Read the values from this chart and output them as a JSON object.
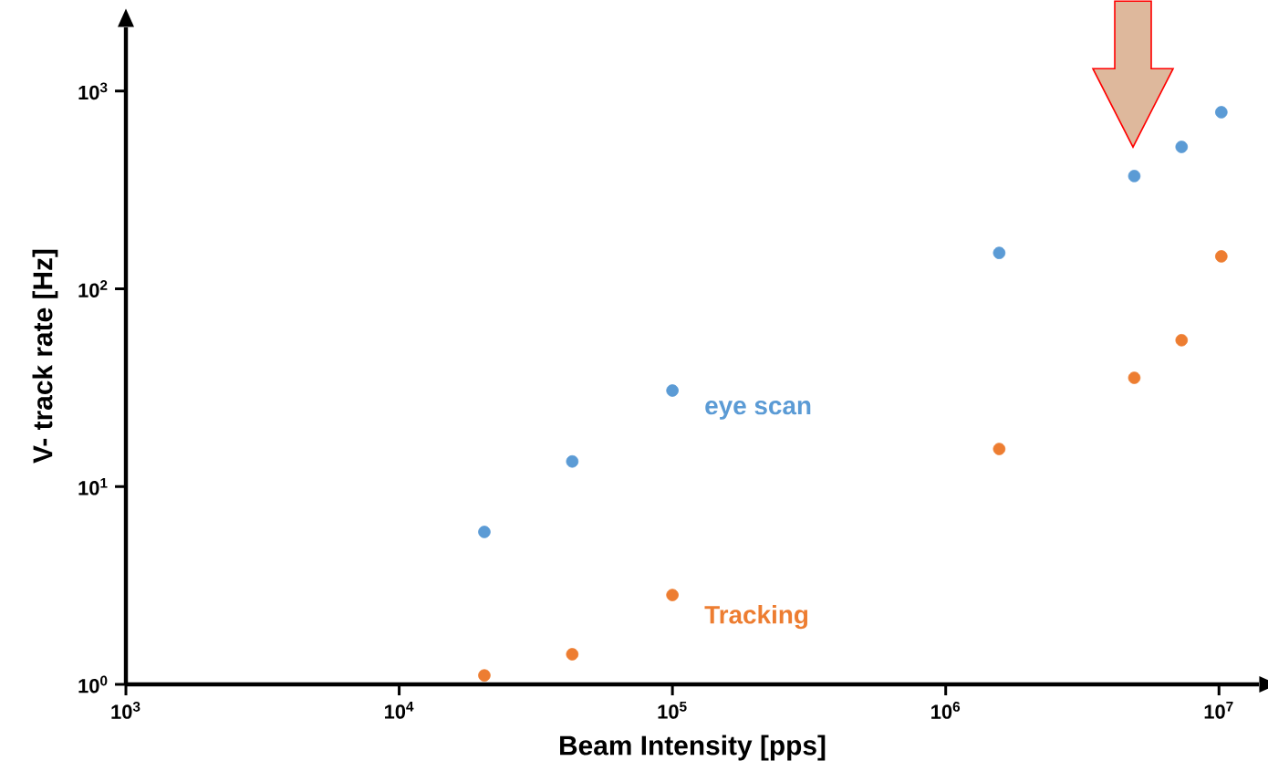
{
  "chart_data": {
    "type": "scatter",
    "xlabel": "Beam Intensity [pps]",
    "ylabel": "V- track rate [Hz]",
    "log": "xy",
    "marker": "circle",
    "grid": false,
    "x": [
      20500,
      43000,
      100000,
      1570000,
      4900000,
      7300000,
      10200000
    ],
    "series": [
      {
        "name": "eye scan",
        "color": "#5b9bd5",
        "values": [
          5.9,
          13.4,
          30.6,
          152,
          372,
          522,
          782
        ]
      },
      {
        "name": "Tracking",
        "color": "#ed7d31",
        "values": [
          1.11,
          1.42,
          2.83,
          15.5,
          35.5,
          55,
          146
        ]
      }
    ],
    "xlim": [
      1000,
      14000000
    ],
    "ylim": [
      1,
      2100
    ],
    "xticks": [
      {
        "value": 1000,
        "label": "10$^{3}$"
      },
      {
        "value": 10000,
        "label": "10$^{4}$"
      },
      {
        "value": 100000,
        "label": "10$^{5}$"
      },
      {
        "value": 1000000,
        "label": "10$^{6}$"
      },
      {
        "value": 10000000,
        "label": "10$^{7}$"
      }
    ],
    "yticks": [
      {
        "value": 1,
        "label": "10$^{0}$"
      },
      {
        "value": 10,
        "label": "10$^{1}$"
      },
      {
        "value": 100,
        "label": "10$^{2}$"
      },
      {
        "value": 1000,
        "label": "10$^{3}$"
      }
    ]
  }
}
